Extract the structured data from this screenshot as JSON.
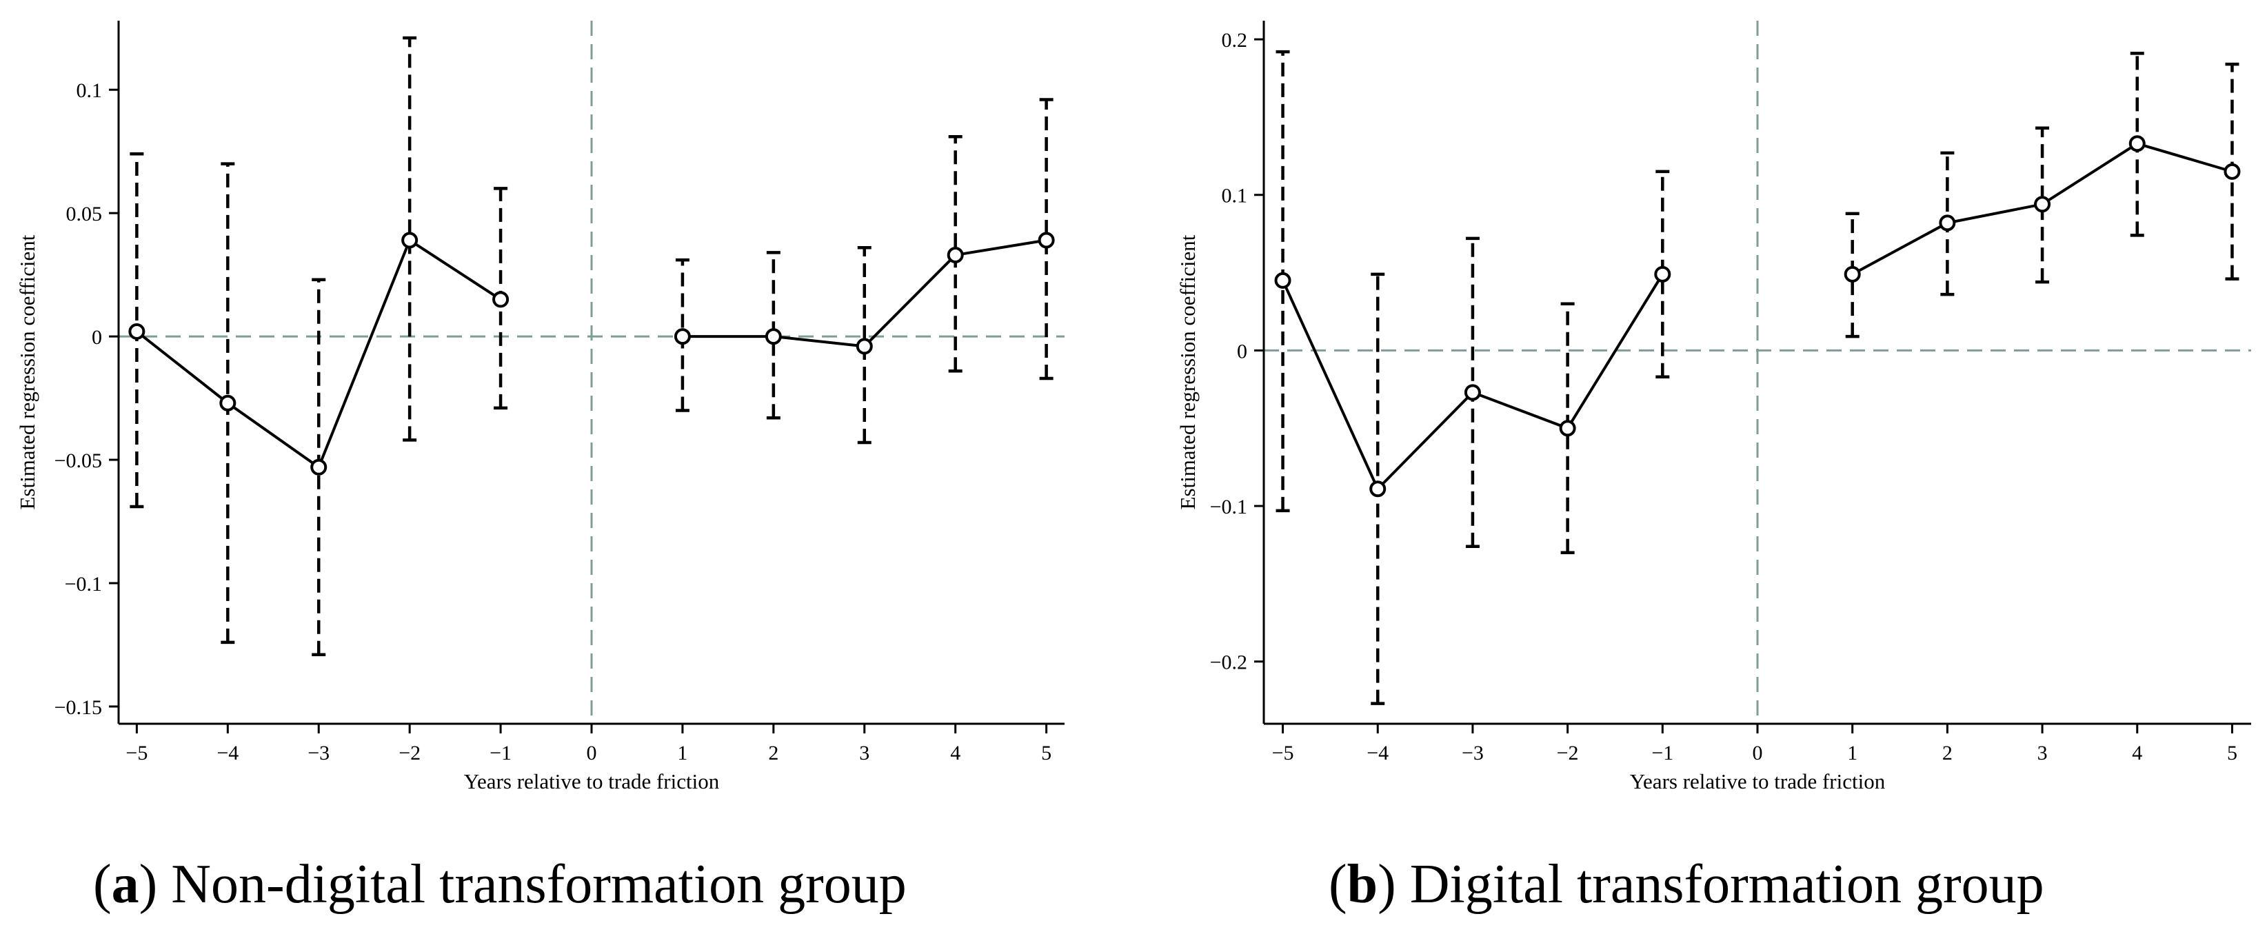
{
  "chart_data": [
    {
      "type": "line",
      "title": "",
      "caption_label": "a",
      "caption_text": "Non-digital transformation group",
      "xlabel": "Years relative to trade friction",
      "ylabel": "Estimated regression coefficient",
      "xlim": [
        -5.2,
        5.2
      ],
      "ylim": [
        -0.157,
        0.128
      ],
      "x_ticks": [
        -5,
        -4,
        -3,
        -2,
        -1,
        0,
        1,
        2,
        3,
        4,
        5
      ],
      "x_tick_labels": [
        "−5",
        "−4",
        "−3",
        "−2",
        "−1",
        "0",
        "1",
        "2",
        "3",
        "4",
        "5"
      ],
      "y_ticks": [
        -0.15,
        -0.1,
        -0.05,
        0,
        0.05,
        0.1
      ],
      "y_tick_labels": [
        "−0.15",
        "−0.1",
        "−0.05",
        "0",
        "0.05",
        "0.1"
      ],
      "reference_lines": {
        "horizontal_y": 0,
        "vertical_x": 0
      },
      "segments": [
        [
          {
            "x": -5,
            "y": 0.002,
            "lo": -0.069,
            "hi": 0.074
          },
          {
            "x": -4,
            "y": -0.027,
            "lo": -0.124,
            "hi": 0.07
          },
          {
            "x": -3,
            "y": -0.053,
            "lo": -0.129,
            "hi": 0.023
          },
          {
            "x": -2,
            "y": 0.039,
            "lo": -0.042,
            "hi": 0.121
          },
          {
            "x": -1,
            "y": 0.015,
            "lo": -0.029,
            "hi": 0.06
          }
        ],
        [
          {
            "x": 1,
            "y": 0.0,
            "lo": -0.03,
            "hi": 0.031
          },
          {
            "x": 2,
            "y": 0.0,
            "lo": -0.033,
            "hi": 0.034
          },
          {
            "x": 3,
            "y": -0.004,
            "lo": -0.043,
            "hi": 0.036
          },
          {
            "x": 4,
            "y": 0.033,
            "lo": -0.014,
            "hi": 0.081
          },
          {
            "x": 5,
            "y": 0.039,
            "lo": -0.017,
            "hi": 0.096
          }
        ]
      ]
    },
    {
      "type": "line",
      "title": "",
      "caption_label": "b",
      "caption_text": "Digital transformation group",
      "xlabel": "Years relative to trade friction",
      "ylabel": "Estimated regression coefficient",
      "xlim": [
        -5.2,
        5.2
      ],
      "ylim": [
        -0.24,
        0.212
      ],
      "x_ticks": [
        -5,
        -4,
        -3,
        -2,
        -1,
        0,
        1,
        2,
        3,
        4,
        5
      ],
      "x_tick_labels": [
        "−5",
        "−4",
        "−3",
        "−2",
        "−1",
        "0",
        "1",
        "2",
        "3",
        "4",
        "5"
      ],
      "y_ticks": [
        -0.2,
        -0.1,
        0,
        0.1,
        0.2
      ],
      "y_tick_labels": [
        "−0.2",
        "−0.1",
        "0",
        "0.1",
        "0.2"
      ],
      "reference_lines": {
        "horizontal_y": 0,
        "vertical_x": 0
      },
      "segments": [
        [
          {
            "x": -5,
            "y": 0.045,
            "lo": -0.103,
            "hi": 0.192
          },
          {
            "x": -4,
            "y": -0.089,
            "lo": -0.227,
            "hi": 0.049
          },
          {
            "x": -3,
            "y": -0.027,
            "lo": -0.126,
            "hi": 0.072
          },
          {
            "x": -2,
            "y": -0.05,
            "lo": -0.13,
            "hi": 0.03
          },
          {
            "x": -1,
            "y": 0.049,
            "lo": -0.017,
            "hi": 0.115
          }
        ],
        [
          {
            "x": 1,
            "y": 0.049,
            "lo": 0.009,
            "hi": 0.088
          },
          {
            "x": 2,
            "y": 0.082,
            "lo": 0.036,
            "hi": 0.127
          },
          {
            "x": 3,
            "y": 0.094,
            "lo": 0.044,
            "hi": 0.143
          },
          {
            "x": 4,
            "y": 0.133,
            "lo": 0.074,
            "hi": 0.191
          },
          {
            "x": 5,
            "y": 0.115,
            "lo": 0.046,
            "hi": 0.184
          }
        ]
      ]
    }
  ],
  "colors": {
    "series": "#000000",
    "reference": "#7f9c96",
    "axis": "#000000",
    "background": "#ffffff"
  }
}
